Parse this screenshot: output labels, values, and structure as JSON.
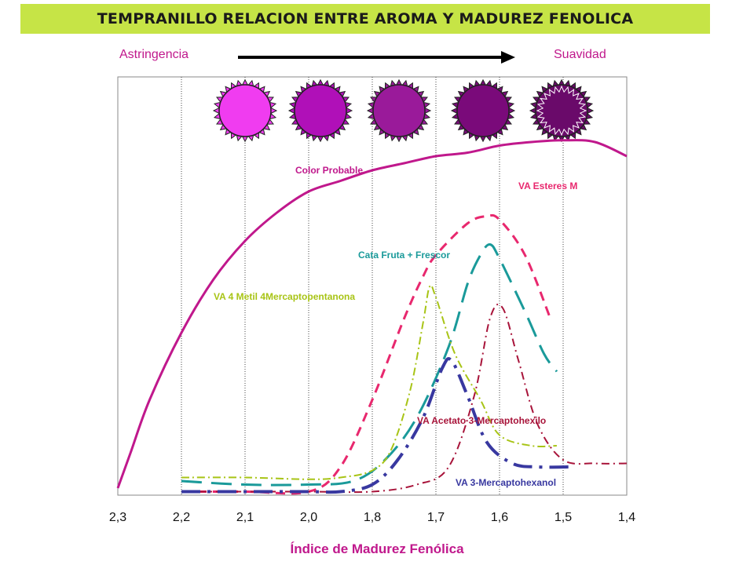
{
  "header": {
    "title": "TEMPRANILLO RELACION ENTRE  AROMA Y  MADUREZ FENOLICA",
    "scale_left": "Astringencia",
    "scale_right": "Suavidad"
  },
  "grape_colors": [
    "#f03cf0",
    "#b010b8",
    "#9a1a9a",
    "#7a0a7a",
    "#6a0a6a"
  ],
  "chart_data": {
    "type": "line",
    "categories": [
      "2,3",
      "2,2",
      "2,1",
      "2,0",
      "1,8",
      "1,7",
      "1,6",
      "1,5",
      "1,4"
    ],
    "xlabel": "Índice de Madurez Fenólica",
    "ylabel": "",
    "ylim": [
      0,
      100
    ],
    "grid": "vertical",
    "series": [
      {
        "name": "Color Probable",
        "color": "#c0188c",
        "dash": "solid",
        "width": 3,
        "points": [
          [
            0,
            2
          ],
          [
            0.2,
            12
          ],
          [
            0.5,
            27
          ],
          [
            1,
            46
          ],
          [
            1.5,
            61
          ],
          [
            2,
            72
          ],
          [
            2.5,
            80
          ],
          [
            3,
            86
          ],
          [
            3.5,
            89
          ],
          [
            4,
            92
          ],
          [
            4.5,
            94
          ],
          [
            5,
            96
          ],
          [
            5.5,
            97
          ],
          [
            6,
            99
          ],
          [
            6.5,
            100
          ],
          [
            7,
            100.5
          ],
          [
            7.5,
            100
          ],
          [
            8,
            96
          ]
        ]
      },
      {
        "name": "VA Esteres M",
        "color": "#e8286e",
        "dash": "12 8",
        "width": 3,
        "points": [
          [
            1,
            1
          ],
          [
            2,
            1
          ],
          [
            3,
            1
          ],
          [
            3.5,
            8
          ],
          [
            4,
            27
          ],
          [
            4.5,
            50
          ],
          [
            4.8,
            62
          ],
          [
            5,
            68
          ],
          [
            5.5,
            77
          ],
          [
            5.8,
            79
          ],
          [
            6,
            78
          ],
          [
            6.4,
            68
          ],
          [
            6.8,
            50
          ]
        ]
      },
      {
        "name": "Cata Fruta + Frescor",
        "color": "#1a9a9a",
        "dash": "26 12",
        "width": 3,
        "points": [
          [
            1,
            4
          ],
          [
            2,
            3
          ],
          [
            3,
            3
          ],
          [
            3.7,
            4
          ],
          [
            4.2,
            10
          ],
          [
            4.7,
            22
          ],
          [
            5.2,
            42
          ],
          [
            5.5,
            60
          ],
          [
            5.7,
            68
          ],
          [
            5.85,
            71
          ],
          [
            6,
            67
          ],
          [
            6.4,
            52
          ],
          [
            6.7,
            40
          ],
          [
            6.9,
            35
          ]
        ]
      },
      {
        "name": "VA 4 Metil 4Mercaptopentanona",
        "color": "#a8c416",
        "dash": "10 4 2 4",
        "width": 2,
        "points": [
          [
            1,
            5
          ],
          [
            2,
            5
          ],
          [
            3,
            4.5
          ],
          [
            3.5,
            5
          ],
          [
            4,
            7
          ],
          [
            4.3,
            13
          ],
          [
            4.6,
            30
          ],
          [
            4.8,
            49
          ],
          [
            4.9,
            59
          ],
          [
            5,
            56
          ],
          [
            5.3,
            40
          ],
          [
            5.7,
            27
          ],
          [
            6,
            17
          ],
          [
            6.5,
            14
          ],
          [
            6.9,
            14
          ]
        ]
      },
      {
        "name": "VA Acetato 3-Mercaptohexilo",
        "color": "#a8143a",
        "dash": "10 5 2 5",
        "width": 2,
        "points": [
          [
            1,
            1
          ],
          [
            2,
            1
          ],
          [
            3,
            1
          ],
          [
            4,
            1
          ],
          [
            4.7,
            3
          ],
          [
            5.2,
            8
          ],
          [
            5.6,
            28
          ],
          [
            5.85,
            50
          ],
          [
            6.05,
            53
          ],
          [
            6.3,
            38
          ],
          [
            6.6,
            20
          ],
          [
            7,
            10
          ],
          [
            7.5,
            9
          ],
          [
            8,
            9
          ]
        ]
      },
      {
        "name": "VA 3-Mercaptohexanol",
        "color": "#3838a0",
        "dash": "24 9 4 9",
        "width": 4,
        "points": [
          [
            1,
            1
          ],
          [
            2,
            1
          ],
          [
            3,
            1
          ],
          [
            3.5,
            1
          ],
          [
            4,
            3
          ],
          [
            4.4,
            10
          ],
          [
            4.8,
            22
          ],
          [
            5.1,
            36
          ],
          [
            5.25,
            38
          ],
          [
            5.5,
            28
          ],
          [
            5.8,
            15
          ],
          [
            6.2,
            9
          ],
          [
            6.6,
            8
          ],
          [
            7.1,
            8
          ]
        ]
      }
    ]
  }
}
